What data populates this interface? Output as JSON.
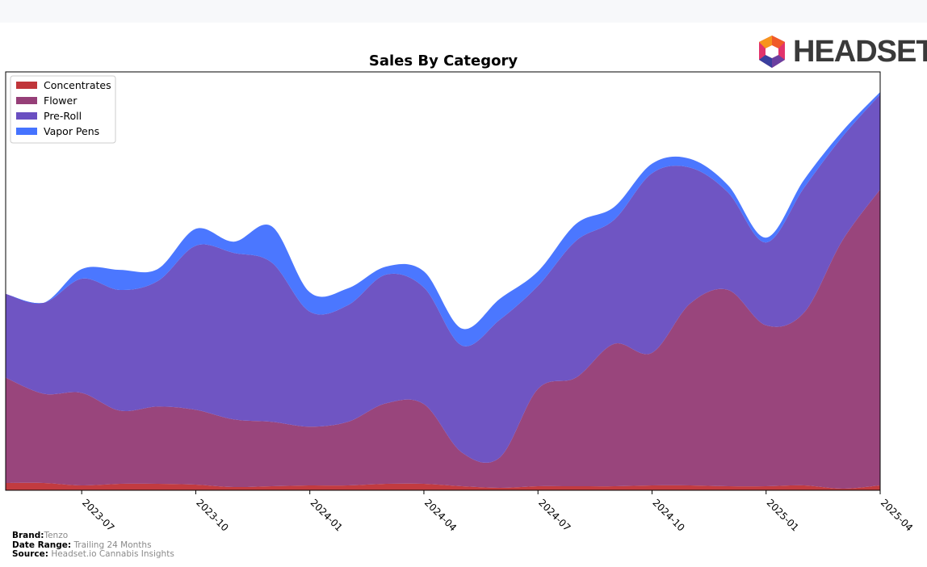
{
  "brand_logo": {
    "text": "HEADSET"
  },
  "footer": {
    "brand_label": "Brand:",
    "brand_value": "Tenzo",
    "date_range_label": "Date Range:",
    "date_range_value": "Trailing 24 Months",
    "source_label": "Source:",
    "source_value": "Headset.io Cannabis Insights"
  },
  "chart_data": {
    "type": "area",
    "stacked": true,
    "title": "Sales By Category",
    "xlabel": "",
    "ylabel": "",
    "y_ticks_visible": false,
    "legend_position": "top-left",
    "x_ticks": [
      "2023-07",
      "2023-10",
      "2024-01",
      "2024-04",
      "2024-07",
      "2024-10",
      "2025-01",
      "2025-04"
    ],
    "x": [
      "2023-05",
      "2023-06",
      "2023-07",
      "2023-08",
      "2023-09",
      "2023-10",
      "2023-11",
      "2023-12",
      "2024-01",
      "2024-02",
      "2024-03",
      "2024-04",
      "2024-05",
      "2024-06",
      "2024-07",
      "2024-08",
      "2024-09",
      "2024-10",
      "2024-11",
      "2024-12",
      "2025-01",
      "2025-02",
      "2025-03",
      "2025-04"
    ],
    "ylim": [
      0,
      520
    ],
    "series": [
      {
        "name": "Concentrates",
        "color": "#c0353a",
        "values": [
          9,
          9,
          6,
          8,
          8,
          7,
          4,
          5,
          6,
          6,
          8,
          8,
          5,
          3,
          5,
          5,
          5,
          6,
          6,
          5,
          5,
          6,
          2,
          6
        ]
      },
      {
        "name": "Flower",
        "color": "#963f78",
        "values": [
          131,
          111,
          115,
          91,
          96,
          93,
          84,
          80,
          73,
          79,
          100,
          99,
          42,
          38,
          121,
          135,
          177,
          165,
          226,
          244,
          200,
          215,
          308,
          368
        ]
      },
      {
        "name": "Pre-Roll",
        "color": "#6a4fc1",
        "values": [
          104,
          113,
          142,
          150,
          156,
          204,
          207,
          198,
          143,
          145,
          160,
          145,
          133,
          171,
          128,
          170,
          154,
          223,
          169,
          121,
          103,
          155,
          129,
          118
        ]
      },
      {
        "name": "Vapor Pens",
        "color": "#4573ff",
        "values": [
          0,
          0,
          12,
          25,
          15,
          21,
          14,
          45,
          24,
          21,
          10,
          20,
          21,
          26,
          18,
          21,
          16,
          12,
          11,
          9,
          6,
          10,
          7,
          3
        ]
      }
    ]
  }
}
